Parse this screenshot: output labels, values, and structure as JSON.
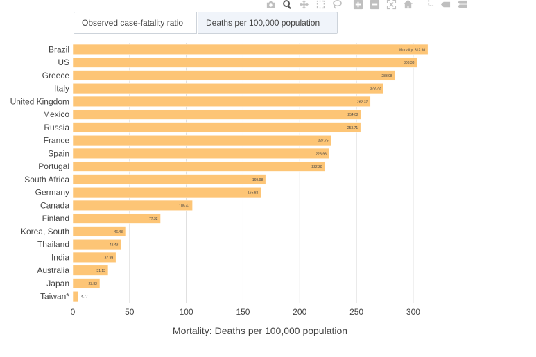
{
  "modebar": [
    {
      "icon": "camera-icon"
    },
    {
      "icon": "zoom-icon",
      "active": true
    },
    {
      "icon": "pan-icon"
    },
    {
      "icon": "box-select-icon"
    },
    {
      "icon": "lasso-select-icon"
    },
    {
      "icon": "zoom-in-icon"
    },
    {
      "icon": "zoom-out-icon"
    },
    {
      "icon": "autoscale-icon"
    },
    {
      "icon": "reset-axes-icon"
    },
    {
      "icon": "spike-lines-icon"
    },
    {
      "icon": "hover-closest-icon"
    },
    {
      "icon": "hover-compare-icon"
    }
  ],
  "tabs": {
    "cfr_label": "Observed case-fatality ratio",
    "deaths_label": "Deaths per 100,000 population"
  },
  "chart_data": {
    "type": "bar",
    "orientation": "horizontal",
    "categories": [
      "Brazil",
      "US",
      "Greece",
      "Italy",
      "United Kingdom",
      "Mexico",
      "Russia",
      "France",
      "Spain",
      "Portugal",
      "South Africa",
      "Germany",
      "Canada",
      "Finland",
      "Korea, South",
      "Thailand",
      "India",
      "Australia",
      "Japan",
      "Taiwan*"
    ],
    "values": [
      312.98,
      303.38,
      283.98,
      273.72,
      262.37,
      254.02,
      253.71,
      227.75,
      225.98,
      222.28,
      169.98,
      165.82,
      105.47,
      77.32,
      46.43,
      42.43,
      37.99,
      31.13,
      23.82,
      4.77
    ],
    "first_label_prefix": "Mortality:",
    "xlabel": "Mortality: Deaths per 100,000 population",
    "xlim": [
      0,
      330
    ],
    "xticks": [
      0,
      50,
      100,
      150,
      200,
      250,
      300
    ],
    "grid": true,
    "bar_color": "#fdc576"
  }
}
